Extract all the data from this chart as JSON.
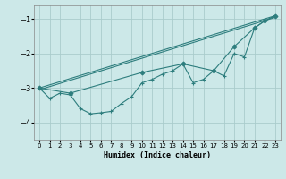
{
  "xlabel": "Humidex (Indice chaleur)",
  "background_color": "#cce8e8",
  "grid_color": "#aacccc",
  "line_color": "#2d7d7d",
  "xlim": [
    -0.5,
    23.5
  ],
  "ylim": [
    -4.5,
    -0.6
  ],
  "yticks": [
    -4,
    -3,
    -2,
    -1
  ],
  "xticks": [
    0,
    1,
    2,
    3,
    4,
    5,
    6,
    7,
    8,
    9,
    10,
    11,
    12,
    13,
    14,
    15,
    16,
    17,
    18,
    19,
    20,
    21,
    22,
    23
  ],
  "lines": [
    {
      "x": [
        0,
        23
      ],
      "y": [
        -3.0,
        -0.9
      ],
      "marker": null
    },
    {
      "x": [
        0,
        3,
        10,
        14,
        17,
        19,
        21,
        22,
        23
      ],
      "y": [
        -3.0,
        -3.15,
        -2.55,
        -2.3,
        -2.5,
        -1.8,
        -1.25,
        -1.05,
        -0.9
      ],
      "marker": "D"
    },
    {
      "x": [
        0,
        1,
        2,
        3,
        4,
        5,
        6,
        7,
        8,
        9,
        10,
        11,
        12,
        13,
        14,
        15,
        16,
        17,
        18,
        19,
        20,
        21,
        22,
        23
      ],
      "y": [
        -3.0,
        -3.3,
        -3.15,
        -3.2,
        -3.6,
        -3.75,
        -3.72,
        -3.68,
        -3.45,
        -3.25,
        -2.85,
        -2.75,
        -2.6,
        -2.5,
        -2.3,
        -2.85,
        -2.75,
        -2.5,
        -2.65,
        -2.0,
        -2.1,
        -1.25,
        -1.05,
        -0.9
      ],
      "marker": "+"
    },
    {
      "x": [
        0,
        23
      ],
      "y": [
        -3.05,
        -0.95
      ],
      "marker": null
    }
  ]
}
